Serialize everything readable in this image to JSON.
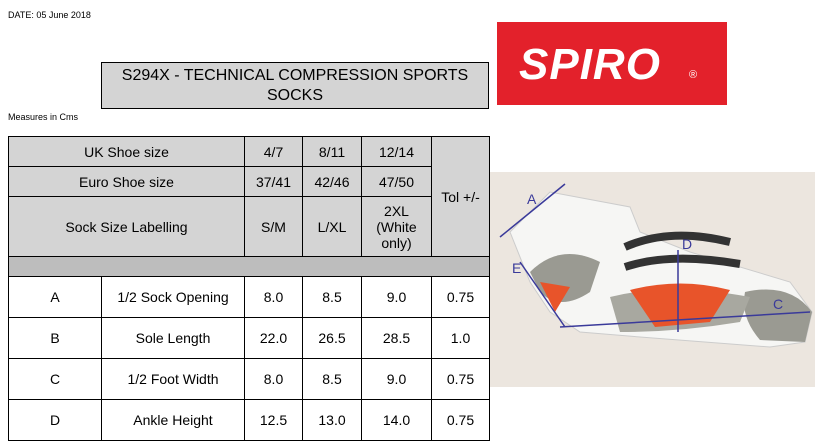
{
  "date": "DATE: 05 June 2018",
  "logo": {
    "text": "SPIRO",
    "mark": "®"
  },
  "title": "S294X - TECHNICAL COMPRESSION SPORTS SOCKS",
  "measures_note": "Measures in Cms",
  "table": {
    "header": [
      [
        "UK Shoe size",
        "4/7",
        "8/11",
        "12/14"
      ],
      [
        "Euro Shoe size",
        "37/41",
        "42/46",
        "47/50"
      ],
      [
        "Sock Size Labelling",
        "S/M",
        "L/XL",
        "2XL (White only)"
      ]
    ],
    "tolerance_header": "Tol +/-",
    "rows": [
      [
        "A",
        "1/2 Sock Opening",
        "8.0",
        "8.5",
        "9.0",
        "0.75"
      ],
      [
        "B",
        "Sole Length",
        "22.0",
        "26.5",
        "28.5",
        "1.0"
      ],
      [
        "C",
        "1/2 Foot Width",
        "8.0",
        "8.5",
        "9.0",
        "0.75"
      ],
      [
        "D",
        "Ankle Height",
        "12.5",
        "13.0",
        "14.0",
        "0.75"
      ]
    ]
  },
  "diagram_labels": [
    "A",
    "D",
    "E",
    "C"
  ]
}
